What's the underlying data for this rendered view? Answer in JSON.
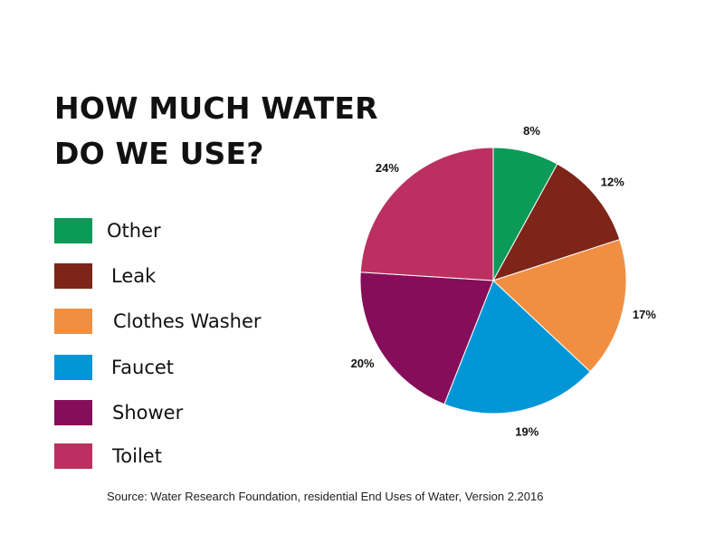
{
  "title": {
    "line1": "HOW MUCH WATER",
    "line2": "DO WE USE?"
  },
  "source": "Source: Water Research Foundation, residential End Uses of Water, Version 2.2016",
  "chart_data": {
    "type": "pie",
    "title": "HOW MUCH WATER DO WE USE?",
    "unit": "%",
    "legend_placement": "left",
    "slices": [
      {
        "name": "Other",
        "value": 8,
        "label": "8%",
        "color": "#0b9a57"
      },
      {
        "name": "Leak",
        "value": 12,
        "label": "12%",
        "color": "#7d2518"
      },
      {
        "name": "Clothes Washer",
        "value": 17,
        "label": "17%",
        "color": "#f08f42"
      },
      {
        "name": "Faucet",
        "value": 19,
        "label": "19%",
        "color": "#0396d6"
      },
      {
        "name": "Shower",
        "value": 20,
        "label": "20%",
        "color": "#860d59"
      },
      {
        "name": "Toilet",
        "value": 24,
        "label": "24%",
        "color": "#bb3060"
      }
    ]
  }
}
